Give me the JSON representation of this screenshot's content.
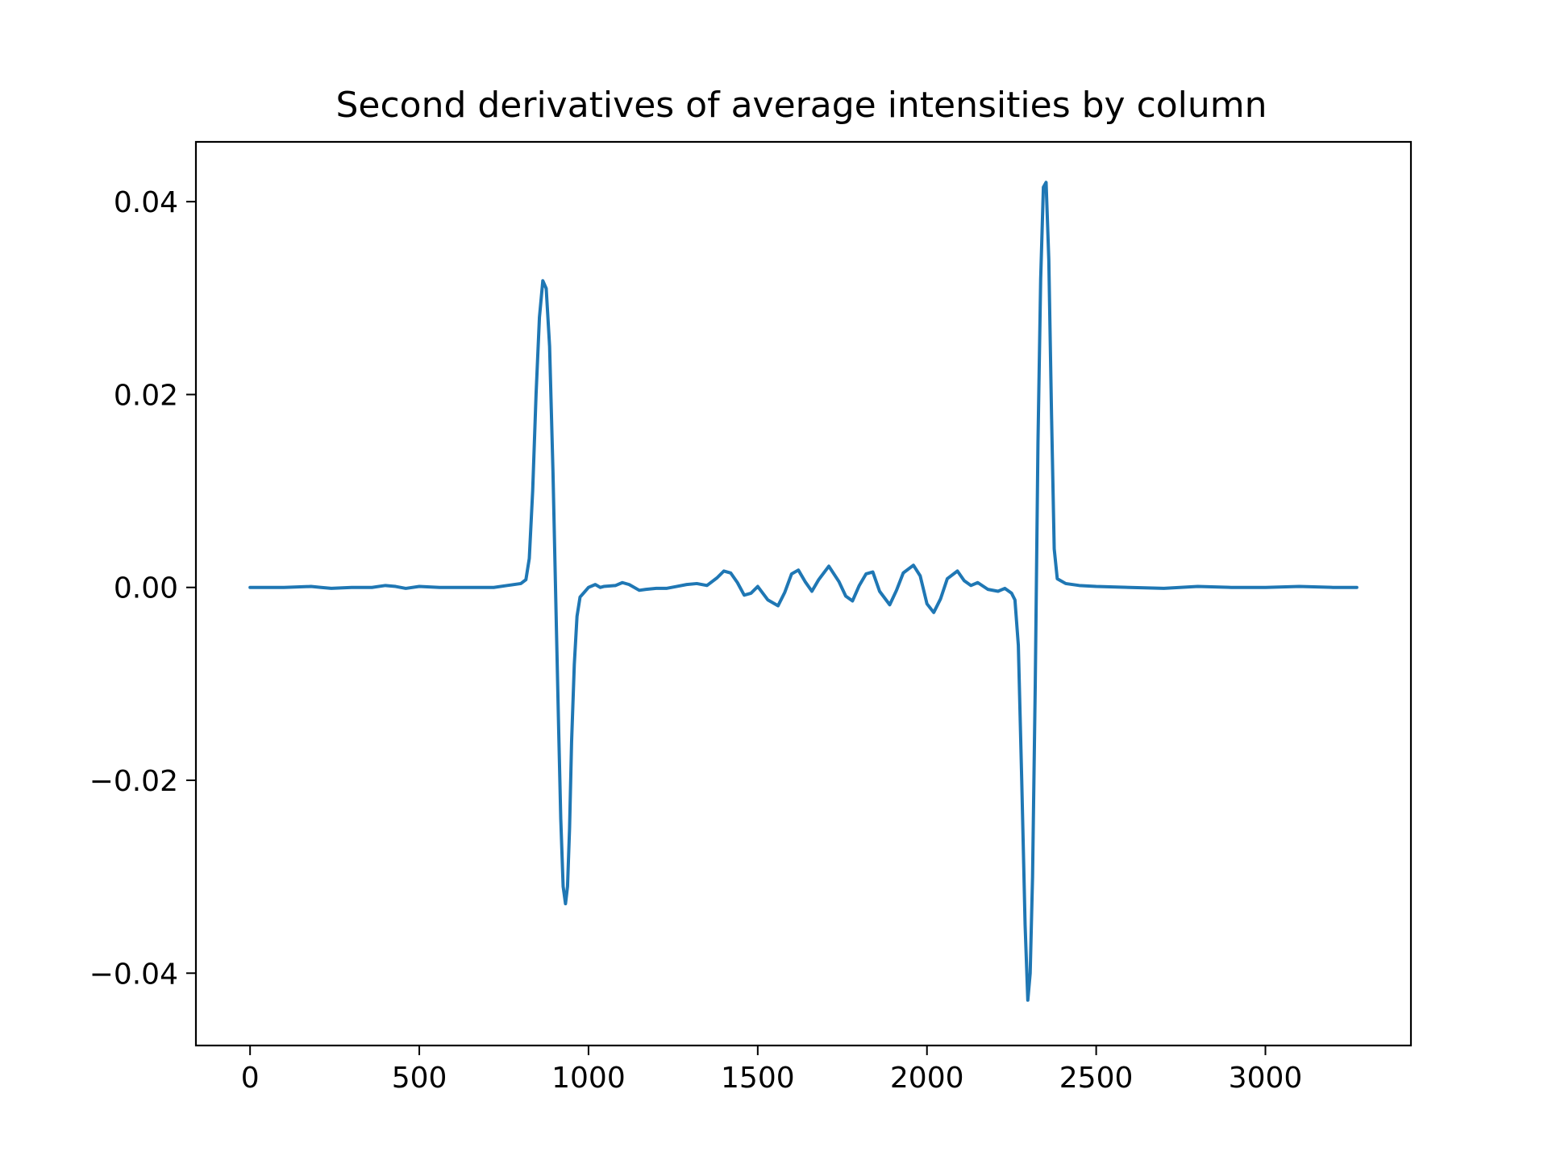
{
  "chart_data": {
    "type": "line",
    "title": "Second derivatives of average intensities by column",
    "xlabel": "",
    "ylabel": "",
    "xlim": [
      -160,
      3430
    ],
    "ylim": [
      -0.0475,
      0.0462
    ],
    "xticks": [
      0,
      500,
      1000,
      1500,
      2000,
      2500,
      3000
    ],
    "xtick_labels": [
      "0",
      "500",
      "1000",
      "1500",
      "2000",
      "2500",
      "3000"
    ],
    "yticks": [
      -0.04,
      -0.02,
      0.0,
      0.02,
      0.04
    ],
    "ytick_labels": [
      "−0.04",
      "−0.02",
      "0.00",
      "0.02",
      "0.04"
    ],
    "grid": false,
    "line_color": "#1f77b4",
    "series": [
      {
        "x": [
          0,
          100,
          180,
          210,
          240,
          300,
          360,
          400,
          430,
          460,
          500,
          560,
          640,
          720,
          760,
          800,
          815,
          825,
          835,
          845,
          855,
          865,
          875,
          885,
          895,
          905,
          912,
          918,
          925,
          932,
          938,
          944,
          950,
          958,
          966,
          975,
          985,
          1000,
          1020,
          1035,
          1045,
          1080,
          1100,
          1120,
          1150,
          1170,
          1200,
          1230,
          1260,
          1290,
          1320,
          1350,
          1380,
          1400,
          1420,
          1440,
          1460,
          1480,
          1500,
          1530,
          1560,
          1580,
          1600,
          1620,
          1640,
          1660,
          1680,
          1710,
          1740,
          1760,
          1780,
          1800,
          1820,
          1840,
          1860,
          1890,
          1910,
          1930,
          1960,
          1980,
          2000,
          2020,
          2040,
          2060,
          2090,
          2110,
          2130,
          2150,
          2180,
          2210,
          2230,
          2250,
          2260,
          2270,
          2280,
          2290,
          2298,
          2305,
          2312,
          2320,
          2328,
          2336,
          2344,
          2352,
          2360,
          2368,
          2376,
          2385,
          2395,
          2410,
          2450,
          2500,
          2600,
          2700,
          2800,
          2900,
          3000,
          3100,
          3200,
          3270
        ],
        "y": [
          0.0,
          0.0,
          0.0001,
          0.0,
          -0.0001,
          0.0,
          0.0,
          0.0002,
          0.0001,
          -0.0001,
          0.0001,
          0.0,
          0.0,
          0.0,
          0.0002,
          0.0004,
          0.0008,
          0.003,
          0.01,
          0.02,
          0.028,
          0.0318,
          0.031,
          0.025,
          0.012,
          -0.004,
          -0.015,
          -0.024,
          -0.031,
          -0.0328,
          -0.031,
          -0.025,
          -0.016,
          -0.008,
          -0.003,
          -0.001,
          -0.0006,
          0.0,
          0.0003,
          0.0,
          0.0001,
          0.0002,
          0.0005,
          0.0003,
          -0.0003,
          -0.0002,
          -0.0001,
          -0.0001,
          0.0001,
          0.0003,
          0.0004,
          0.0002,
          0.001,
          0.0017,
          0.0015,
          0.0005,
          -0.0008,
          -0.0006,
          0.0001,
          -0.0013,
          -0.0019,
          -0.0005,
          0.0014,
          0.0018,
          0.0006,
          -0.0004,
          0.0008,
          0.0022,
          0.0006,
          -0.0009,
          -0.0014,
          0.0002,
          0.0014,
          0.0016,
          -0.0004,
          -0.0018,
          -0.0003,
          0.0015,
          0.0023,
          0.0012,
          -0.0017,
          -0.0026,
          -0.0012,
          0.0009,
          0.0017,
          0.0007,
          0.0002,
          0.0005,
          -0.0002,
          -0.0004,
          -0.0001,
          -0.0006,
          -0.0013,
          -0.006,
          -0.02,
          -0.035,
          -0.0428,
          -0.04,
          -0.03,
          -0.01,
          0.015,
          0.032,
          0.0415,
          0.042,
          0.034,
          0.018,
          0.004,
          0.0009,
          0.0007,
          0.0004,
          0.0002,
          0.0001,
          0.0,
          -0.0001,
          0.0001,
          0.0,
          0.0,
          0.0001,
          0.0,
          0.0
        ]
      }
    ]
  }
}
